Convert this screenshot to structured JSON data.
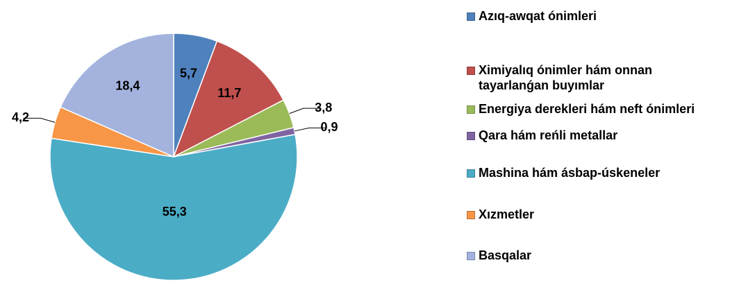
{
  "chart_data": {
    "type": "pie",
    "categories": [
      "Azıq-awqat ónimleri",
      "Ximiyalıq ónimler hám onnan tayarlanǵan buyımlar",
      "Energiya derekleri hám neft ónimleri",
      "Qara hám reńli metallar",
      "Mashina hám ásbap-úskeneler",
      "Xızmetler",
      "Basqalar"
    ],
    "values": [
      5.7,
      11.7,
      3.8,
      0.9,
      55.3,
      4.2,
      18.4
    ],
    "value_labels": [
      "5,7",
      "11,7",
      "3,8",
      "0,9",
      "55,3",
      "4,2",
      "18,4"
    ],
    "colors": [
      "#4f81bd",
      "#c0504d",
      "#9bbb59",
      "#8064a2",
      "#4bacc6",
      "#f79646",
      "#a3b3de"
    ],
    "legend": "right"
  }
}
